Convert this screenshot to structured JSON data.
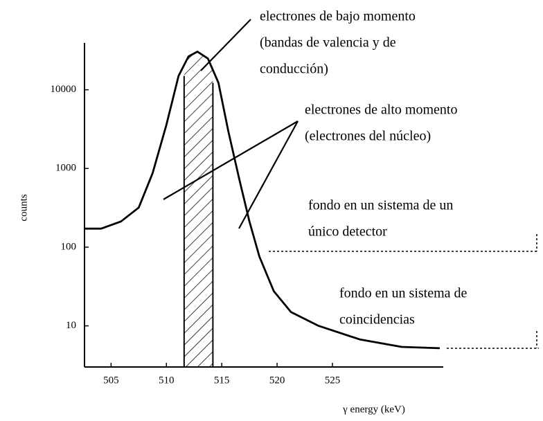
{
  "chart_data": {
    "type": "line",
    "x_label": "γ energy (keV)",
    "y_label": "counts",
    "x": [
      502.6,
      504.1,
      505.9,
      507.5,
      508.75,
      510,
      511.1,
      512,
      512.8,
      513.75,
      514.7,
      515.6,
      516.6,
      517.5,
      518.4,
      519.7,
      521.25,
      523.75,
      527.5,
      531.25,
      534.7
    ],
    "values": [
      172,
      172,
      212,
      318,
      870,
      3600,
      15000,
      26500,
      30500,
      24900,
      12250,
      2930,
      717,
      212,
      76,
      27.6,
      15,
      10,
      6.7,
      5.4,
      5.2
    ],
    "color": "#000000",
    "xlim": [
      502.6,
      534.7
    ],
    "ylim": [
      3,
      41000
    ],
    "xticks": [
      505,
      510,
      515,
      520,
      525
    ],
    "yticks": [
      10,
      100,
      1000,
      10000
    ],
    "y_scale": "log",
    "highlight_band": [
      511.6,
      514.2
    ],
    "annotations": [
      [
        "electrones de bajo momento",
        "(bandas de valencia y de",
        "conducción)"
      ],
      [
        "electrones de alto momento",
        "(electrones del núcleo)"
      ],
      [
        "fondo en un sistema de un",
        "único detector"
      ],
      [
        "fondo en un sistema de",
        "coincidencias"
      ]
    ]
  }
}
